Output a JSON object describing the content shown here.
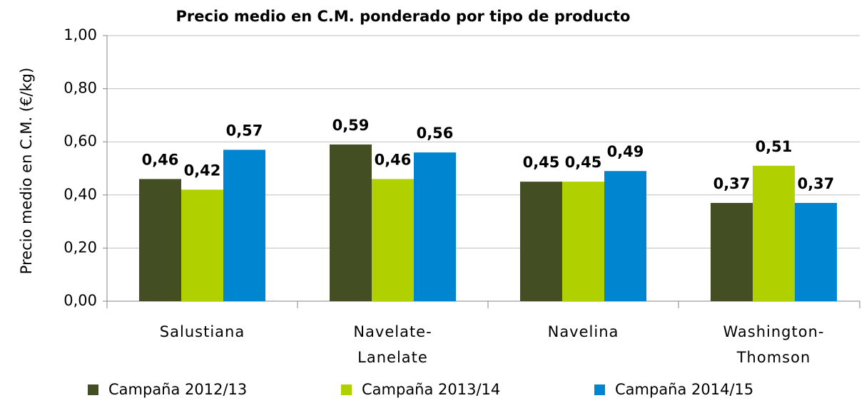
{
  "chart_data": {
    "type": "bar",
    "title": "Precio medio en C.M. ponderado por tipo de producto",
    "y_label": "Precio medio en C.M. (€/kg)",
    "categories": [
      "Salustiana",
      "Navelate-Lanelate",
      "Navelina",
      "Washington-Thomson"
    ],
    "series": [
      {
        "name": "Campaña 2012/13",
        "color": "#434f23",
        "values": [
          0.46,
          0.59,
          0.45,
          0.37
        ],
        "value_labels": [
          "0,46",
          "0,59",
          "0,45",
          "0,37"
        ]
      },
      {
        "name": "Campaña 2013/14",
        "color": "#b0d000",
        "values": [
          0.42,
          0.46,
          0.45,
          0.51
        ],
        "value_labels": [
          "0,42",
          "0,46",
          "0,45",
          "0,51"
        ]
      },
      {
        "name": "Campaña 2014/15",
        "color": "#0085d0",
        "values": [
          0.57,
          0.56,
          0.49,
          0.37
        ],
        "value_labels": [
          "0,57",
          "0,56",
          "0,49",
          "0,37"
        ]
      }
    ],
    "ylim": [
      0,
      1
    ],
    "yticks": [
      {
        "value": 0,
        "label": "0,00"
      },
      {
        "value": 0.2,
        "label": "0,20"
      },
      {
        "value": 0.4,
        "label": "0,40"
      },
      {
        "value": 0.6,
        "label": "0,60"
      },
      {
        "value": 0.8,
        "label": "0,80"
      },
      {
        "value": 1,
        "label": "1,00"
      }
    ],
    "grid": true,
    "legend": "bottom"
  }
}
